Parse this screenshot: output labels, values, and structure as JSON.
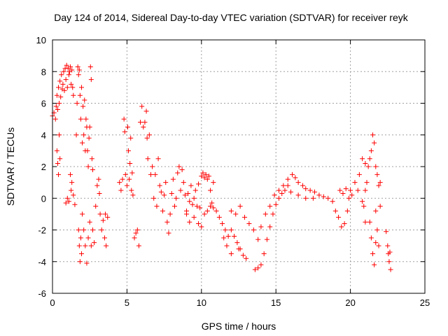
{
  "chart_data": {
    "type": "scatter",
    "title": "Day 124 of 2014, Sidereal Day-to-day VTEC variation (SDTVAR) for receiver reyk",
    "xlabel": "GPS time / hours",
    "ylabel": "SDTVAR / TECUs",
    "xlim": [
      0,
      25
    ],
    "ylim": [
      -6,
      10
    ],
    "xticks": [
      0,
      5,
      10,
      15,
      20,
      25
    ],
    "yticks": [
      -6,
      -4,
      -2,
      0,
      2,
      4,
      6,
      8,
      10
    ],
    "grid": true,
    "marker": "+",
    "marker_color": "#ff0000",
    "series": [
      {
        "name": "SDTVAR",
        "points": [
          [
            0.0,
            5.2
          ],
          [
            0.1,
            5.4
          ],
          [
            0.2,
            5.0
          ],
          [
            0.25,
            5.8
          ],
          [
            0.3,
            6.5
          ],
          [
            0.35,
            5.6
          ],
          [
            0.4,
            7.0
          ],
          [
            0.45,
            6.0
          ],
          [
            0.5,
            7.4
          ],
          [
            0.55,
            6.4
          ],
          [
            0.6,
            7.8
          ],
          [
            0.65,
            6.9
          ],
          [
            0.7,
            7.2
          ],
          [
            0.75,
            8.0
          ],
          [
            0.8,
            6.8
          ],
          [
            0.85,
            8.2
          ],
          [
            0.9,
            7.5
          ],
          [
            0.95,
            8.4
          ],
          [
            1.0,
            7.0
          ],
          [
            1.05,
            8.2
          ],
          [
            1.1,
            7.8
          ],
          [
            1.15,
            8.0
          ],
          [
            1.2,
            8.3
          ],
          [
            1.25,
            7.2
          ],
          [
            1.3,
            8.1
          ],
          [
            1.35,
            7.0
          ],
          [
            1.4,
            6.5
          ],
          [
            0.3,
            3.0
          ],
          [
            0.35,
            2.2
          ],
          [
            0.4,
            1.5
          ],
          [
            0.45,
            4.0
          ],
          [
            0.5,
            2.5
          ],
          [
            0.9,
            -0.3
          ],
          [
            1.0,
            0.0
          ],
          [
            1.1,
            -0.2
          ],
          [
            1.2,
            1.5
          ],
          [
            1.25,
            0.5
          ],
          [
            1.3,
            1.0
          ],
          [
            1.4,
            0.2
          ],
          [
            1.5,
            -0.4
          ],
          [
            1.6,
            4.0
          ],
          [
            1.65,
            6.0
          ],
          [
            1.7,
            8.3
          ],
          [
            1.75,
            7.8
          ],
          [
            1.8,
            8.1
          ],
          [
            1.85,
            6.5
          ],
          [
            1.9,
            5.0
          ],
          [
            1.95,
            7.0
          ],
          [
            2.0,
            3.5
          ],
          [
            2.05,
            5.8
          ],
          [
            2.1,
            4.0
          ],
          [
            2.15,
            6.2
          ],
          [
            2.2,
            3.0
          ],
          [
            2.25,
            5.0
          ],
          [
            2.3,
            4.5
          ],
          [
            2.35,
            3.0
          ],
          [
            2.4,
            2.0
          ],
          [
            2.45,
            3.8
          ],
          [
            2.5,
            4.5
          ],
          [
            2.55,
            8.3
          ],
          [
            2.6,
            7.5
          ],
          [
            2.65,
            2.5
          ],
          [
            2.7,
            1.8
          ],
          [
            1.75,
            -2.0
          ],
          [
            1.8,
            -3.0
          ],
          [
            1.85,
            -4.0
          ],
          [
            1.9,
            -2.5
          ],
          [
            1.95,
            -3.5
          ],
          [
            2.0,
            -1.0
          ],
          [
            2.1,
            -2.0
          ],
          [
            2.2,
            -3.0
          ],
          [
            2.3,
            -4.1
          ],
          [
            2.4,
            -2.5
          ],
          [
            2.5,
            -1.5
          ],
          [
            2.6,
            -3.0
          ],
          [
            2.7,
            -2.0
          ],
          [
            2.8,
            -2.8
          ],
          [
            2.9,
            -0.5
          ],
          [
            3.0,
            0.8
          ],
          [
            3.1,
            1.2
          ],
          [
            3.15,
            0.3
          ],
          [
            3.2,
            -1.0
          ],
          [
            3.3,
            -2.0
          ],
          [
            3.4,
            -1.4
          ],
          [
            3.5,
            -2.5
          ],
          [
            3.55,
            -1.0
          ],
          [
            3.6,
            -3.0
          ],
          [
            3.7,
            -1.2
          ],
          [
            4.5,
            1.0
          ],
          [
            4.6,
            0.5
          ],
          [
            4.7,
            1.2
          ],
          [
            4.8,
            5.0
          ],
          [
            4.85,
            4.2
          ],
          [
            4.9,
            1.5
          ],
          [
            5.0,
            0.8
          ],
          [
            5.05,
            4.5
          ],
          [
            5.1,
            3.0
          ],
          [
            5.15,
            1.2
          ],
          [
            5.2,
            2.2
          ],
          [
            5.25,
            3.8
          ],
          [
            5.3,
            0.5
          ],
          [
            5.35,
            1.6
          ],
          [
            5.4,
            0.2
          ],
          [
            5.5,
            -2.5
          ],
          [
            5.6,
            -2.2
          ],
          [
            5.7,
            -2.0
          ],
          [
            5.8,
            -3.0
          ],
          [
            5.9,
            4.8
          ],
          [
            6.0,
            5.8
          ],
          [
            6.1,
            4.5
          ],
          [
            6.2,
            4.8
          ],
          [
            6.3,
            5.5
          ],
          [
            6.35,
            3.8
          ],
          [
            6.4,
            2.5
          ],
          [
            6.5,
            4.0
          ],
          [
            6.6,
            1.5
          ],
          [
            6.7,
            2.0
          ],
          [
            6.8,
            0.0
          ],
          [
            6.9,
            1.5
          ],
          [
            7.0,
            -0.5
          ],
          [
            7.1,
            2.5
          ],
          [
            7.2,
            0.8
          ],
          [
            7.3,
            0.4
          ],
          [
            7.4,
            -0.8
          ],
          [
            7.5,
            0.2
          ],
          [
            7.6,
            1.0
          ],
          [
            7.7,
            -1.5
          ],
          [
            7.8,
            -2.2
          ],
          [
            7.9,
            -1.0
          ],
          [
            8.0,
            0.3
          ],
          [
            8.1,
            1.2
          ],
          [
            8.2,
            -0.5
          ],
          [
            8.3,
            0.0
          ],
          [
            8.4,
            1.6
          ],
          [
            8.5,
            2.0
          ],
          [
            8.6,
            0.5
          ],
          [
            8.7,
            1.8
          ],
          [
            8.8,
            1.0
          ],
          [
            8.9,
            0.2
          ],
          [
            9.0,
            -0.8
          ],
          [
            9.1,
            0.3
          ],
          [
            9.2,
            -0.2
          ],
          [
            9.3,
            0.8
          ],
          [
            9.4,
            -0.4
          ],
          [
            9.5,
            0.0
          ],
          [
            9.6,
            0.5
          ],
          [
            9.7,
            -0.5
          ],
          [
            9.8,
            0.9
          ],
          [
            9.9,
            -0.6
          ],
          [
            10.0,
            1.4
          ],
          [
            10.1,
            1.6
          ],
          [
            10.2,
            1.3
          ],
          [
            10.3,
            1.5
          ],
          [
            10.4,
            1.2
          ],
          [
            10.5,
            1.4
          ],
          [
            10.6,
            0.5
          ],
          [
            10.7,
            -0.3
          ],
          [
            10.8,
            1.0
          ],
          [
            9.0,
            -1.0
          ],
          [
            9.2,
            -1.5
          ],
          [
            9.5,
            -1.2
          ],
          [
            9.8,
            -1.6
          ],
          [
            10.0,
            -1.8
          ],
          [
            10.2,
            -1.0
          ],
          [
            10.4,
            -0.8
          ],
          [
            10.6,
            -0.5
          ],
          [
            10.8,
            -0.6
          ],
          [
            11.0,
            -0.8
          ],
          [
            11.2,
            -1.2
          ],
          [
            11.4,
            -1.6
          ],
          [
            11.6,
            -2.0
          ],
          [
            11.8,
            -2.4
          ],
          [
            12.0,
            -2.0
          ],
          [
            12.2,
            -2.4
          ],
          [
            12.4,
            -2.8
          ],
          [
            12.6,
            -3.2
          ],
          [
            12.8,
            -3.6
          ],
          [
            13.0,
            -3.8
          ],
          [
            11.5,
            -2.5
          ],
          [
            11.7,
            -3.0
          ],
          [
            12.0,
            -3.5
          ],
          [
            12.5,
            -3.2
          ],
          [
            12.0,
            -0.8
          ],
          [
            12.3,
            -1.0
          ],
          [
            12.6,
            -0.5
          ],
          [
            12.9,
            -1.2
          ],
          [
            13.2,
            -1.6
          ],
          [
            13.5,
            -2.0
          ],
          [
            13.8,
            -2.6
          ],
          [
            13.6,
            -4.5
          ],
          [
            13.8,
            -4.4
          ],
          [
            14.0,
            -4.2
          ],
          [
            14.2,
            -3.5
          ],
          [
            14.4,
            -2.6
          ],
          [
            14.6,
            -1.8
          ],
          [
            14.8,
            -1.0
          ],
          [
            15.0,
            -0.4
          ],
          [
            15.2,
            0.0
          ],
          [
            15.4,
            0.3
          ],
          [
            15.6,
            0.5
          ],
          [
            15.8,
            0.8
          ],
          [
            16.0,
            0.4
          ],
          [
            14.0,
            -1.8
          ],
          [
            14.3,
            -1.0
          ],
          [
            14.6,
            -0.5
          ],
          [
            14.9,
            0.2
          ],
          [
            15.2,
            0.5
          ],
          [
            15.5,
            0.8
          ],
          [
            15.8,
            1.2
          ],
          [
            16.1,
            1.5
          ],
          [
            16.3,
            1.3
          ],
          [
            16.5,
            1.0
          ],
          [
            16.8,
            0.8
          ],
          [
            17.0,
            0.6
          ],
          [
            17.3,
            0.5
          ],
          [
            17.6,
            0.4
          ],
          [
            17.9,
            0.2
          ],
          [
            18.2,
            0.1
          ],
          [
            18.5,
            0.0
          ],
          [
            18.8,
            -0.2
          ],
          [
            16.5,
            0.2
          ],
          [
            17.0,
            0.0
          ],
          [
            17.5,
            0.0
          ],
          [
            19.0,
            -0.8
          ],
          [
            19.2,
            -1.2
          ],
          [
            19.4,
            -1.8
          ],
          [
            19.6,
            -1.6
          ],
          [
            19.8,
            -0.8
          ],
          [
            19.9,
            0.0
          ],
          [
            20.0,
            0.5
          ],
          [
            20.1,
            0.2
          ],
          [
            19.3,
            0.5
          ],
          [
            19.5,
            0.3
          ],
          [
            19.7,
            0.6
          ],
          [
            20.3,
            1.0
          ],
          [
            20.5,
            0.5
          ],
          [
            20.6,
            1.5
          ],
          [
            20.8,
            2.5
          ],
          [
            21.0,
            2.2
          ],
          [
            21.1,
            1.0
          ],
          [
            21.2,
            2.0
          ],
          [
            20.9,
            -0.5
          ],
          [
            21.0,
            -1.5
          ],
          [
            20.8,
            -0.2
          ],
          [
            21.0,
            0.5
          ],
          [
            21.3,
            2.5
          ],
          [
            21.4,
            3.0
          ],
          [
            21.5,
            4.0
          ],
          [
            21.6,
            3.5
          ],
          [
            21.7,
            2.0
          ],
          [
            21.8,
            1.5
          ],
          [
            21.9,
            0.8
          ],
          [
            22.0,
            1.0
          ],
          [
            21.3,
            -1.5
          ],
          [
            21.4,
            -2.5
          ],
          [
            21.5,
            -3.5
          ],
          [
            21.6,
            -4.2
          ],
          [
            21.7,
            -2.8
          ],
          [
            21.8,
            -2.0
          ],
          [
            21.9,
            -3.0
          ],
          [
            21.7,
            -0.8
          ],
          [
            22.0,
            -0.5
          ],
          [
            22.4,
            -2.1
          ],
          [
            22.5,
            -3.0
          ],
          [
            22.55,
            -3.5
          ],
          [
            22.6,
            -4.0
          ],
          [
            22.7,
            -4.5
          ],
          [
            22.65,
            -3.4
          ]
        ]
      }
    ]
  }
}
